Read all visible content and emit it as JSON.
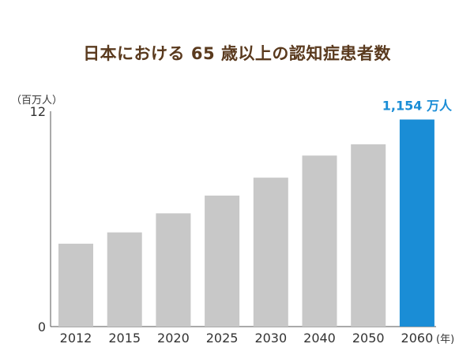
{
  "chart_data": {
    "type": "bar",
    "title": "日本における 65 歳以上の認知症患者数",
    "y_unit": "（百万人）",
    "x_unit": "(年)",
    "categories": [
      "2012",
      "2015",
      "2020",
      "2025",
      "2030",
      "2040",
      "2050",
      "2060"
    ],
    "values": [
      4.62,
      5.25,
      6.31,
      7.3,
      8.3,
      9.53,
      10.16,
      11.54
    ],
    "ylim": [
      0,
      12
    ],
    "yticks": [
      "0",
      "12"
    ],
    "highlight_index": 7,
    "highlight_label": "1,154 万人",
    "colors": {
      "bar": "#c8c8c8",
      "highlight": "#1a8dd6",
      "axis": "#555555",
      "title": "#5a3a1e"
    },
    "grid": false,
    "legend": "none"
  }
}
